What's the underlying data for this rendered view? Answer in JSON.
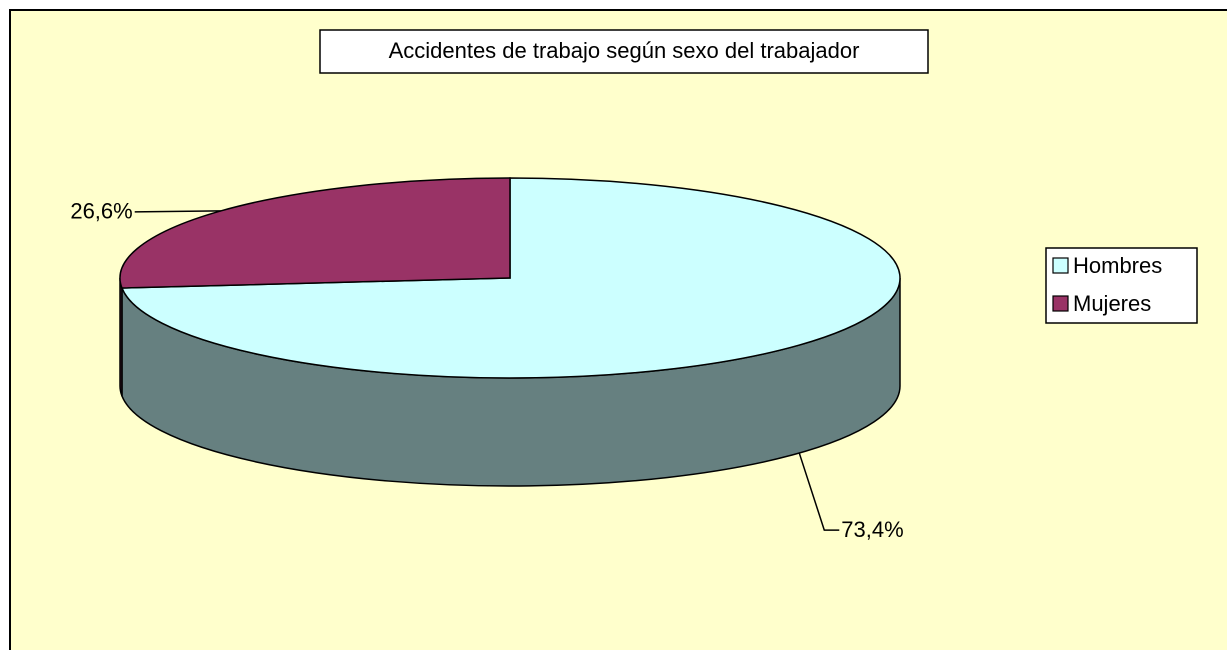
{
  "chart_data": {
    "type": "pie",
    "title": "Accidentes de trabajo según sexo del trabajador",
    "categories": [
      "Hombres",
      "Mujeres"
    ],
    "values": [
      73.4,
      26.6
    ],
    "value_labels": [
      "73,4%",
      "26,6%"
    ],
    "colors": [
      "#ccffff",
      "#993366"
    ],
    "legend": "right"
  }
}
